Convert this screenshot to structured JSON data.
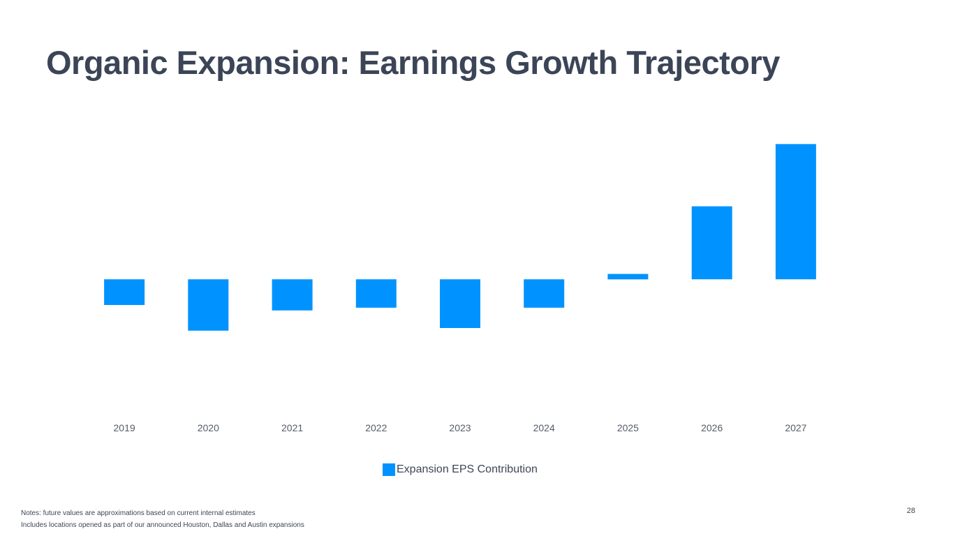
{
  "slide": {
    "title": "Organic Expansion: Earnings Growth Trajectory",
    "notes": [
      "Notes: future values are approximations based on current internal estimates",
      "Includes locations opened as part of our announced Houston, Dallas and Austin expansions"
    ],
    "page_number": "28"
  },
  "chart_data": {
    "type": "bar",
    "title": "",
    "xlabel": "",
    "ylabel": "",
    "categories": [
      "2019",
      "2020",
      "2021",
      "2022",
      "2023",
      "2024",
      "2025",
      "2026",
      "2027"
    ],
    "series": [
      {
        "name": "Expansion EPS Contribution",
        "color": "#0093ff",
        "values": [
          -0.19,
          -0.38,
          -0.23,
          -0.21,
          -0.36,
          -0.21,
          0.04,
          0.54,
          1.0
        ]
      }
    ],
    "ylim": [
      -1.0,
      1.25
    ],
    "grid": false,
    "y_axis_visible": false,
    "legend_position": "bottom-center"
  }
}
